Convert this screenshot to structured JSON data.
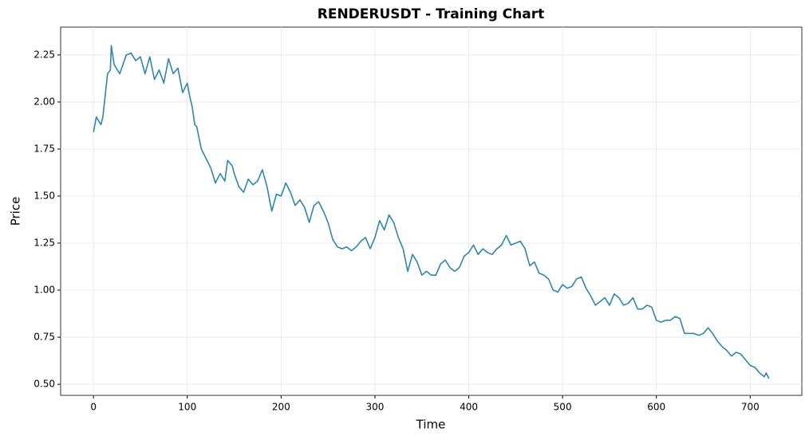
{
  "chart_data": {
    "type": "line",
    "title": "RENDERUSDT - Training Chart",
    "x_label": "Time",
    "y_label": "Price",
    "x": [
      0,
      3,
      8,
      10,
      15,
      18,
      19,
      22,
      28,
      35,
      40,
      45,
      50,
      55,
      60,
      65,
      70,
      75,
      80,
      85,
      90,
      95,
      100,
      103,
      105,
      108,
      110,
      115,
      120,
      125,
      130,
      135,
      140,
      143,
      148,
      150,
      155,
      160,
      165,
      170,
      175,
      180,
      185,
      190,
      195,
      200,
      205,
      210,
      215,
      220,
      225,
      230,
      235,
      240,
      245,
      250,
      255,
      260,
      265,
      270,
      275,
      280,
      285,
      290,
      295,
      300,
      305,
      310,
      315,
      320,
      325,
      330,
      335,
      340,
      345,
      350,
      355,
      360,
      365,
      370,
      375,
      380,
      385,
      390,
      395,
      400,
      405,
      410,
      415,
      420,
      425,
      430,
      435,
      440,
      445,
      450,
      455,
      460,
      465,
      470,
      475,
      480,
      485,
      490,
      495,
      500,
      505,
      510,
      515,
      520,
      525,
      530,
      535,
      540,
      545,
      550,
      555,
      560,
      565,
      570,
      575,
      580,
      585,
      590,
      595,
      600,
      605,
      610,
      615,
      620,
      625,
      630,
      635,
      640,
      645,
      650,
      655,
      660,
      665,
      670,
      675,
      680,
      685,
      690,
      695,
      700,
      705,
      710,
      715,
      717,
      720
    ],
    "series": [
      {
        "name": "Price",
        "color": "#2e86ab",
        "values": [
          1.84,
          1.92,
          1.88,
          1.92,
          2.15,
          2.17,
          2.3,
          2.2,
          2.15,
          2.25,
          2.26,
          2.22,
          2.24,
          2.15,
          2.24,
          2.12,
          2.17,
          2.1,
          2.23,
          2.15,
          2.18,
          2.05,
          2.1,
          2.02,
          1.98,
          1.88,
          1.87,
          1.75,
          1.7,
          1.65,
          1.57,
          1.62,
          1.58,
          1.69,
          1.66,
          1.62,
          1.55,
          1.52,
          1.59,
          1.56,
          1.58,
          1.64,
          1.55,
          1.42,
          1.51,
          1.5,
          1.57,
          1.52,
          1.45,
          1.48,
          1.44,
          1.36,
          1.45,
          1.47,
          1.42,
          1.36,
          1.27,
          1.23,
          1.22,
          1.23,
          1.21,
          1.23,
          1.26,
          1.28,
          1.22,
          1.28,
          1.37,
          1.32,
          1.4,
          1.36,
          1.28,
          1.22,
          1.1,
          1.19,
          1.15,
          1.08,
          1.1,
          1.08,
          1.08,
          1.14,
          1.16,
          1.12,
          1.1,
          1.12,
          1.18,
          1.2,
          1.24,
          1.19,
          1.22,
          1.2,
          1.19,
          1.22,
          1.24,
          1.29,
          1.24,
          1.25,
          1.26,
          1.22,
          1.13,
          1.15,
          1.09,
          1.08,
          1.06,
          1.0,
          0.99,
          1.03,
          1.01,
          1.02,
          1.06,
          1.07,
          1.01,
          0.97,
          0.92,
          0.94,
          0.96,
          0.92,
          0.98,
          0.96,
          0.92,
          0.93,
          0.96,
          0.9,
          0.9,
          0.92,
          0.91,
          0.84,
          0.83,
          0.84,
          0.84,
          0.86,
          0.85,
          0.77,
          0.77,
          0.77,
          0.76,
          0.77,
          0.8,
          0.77,
          0.73,
          0.7,
          0.68,
          0.65,
          0.67,
          0.66,
          0.63,
          0.6,
          0.59,
          0.56,
          0.54,
          0.56,
          0.53
        ]
      }
    ],
    "xlim": [
      -35,
      755
    ],
    "ylim": [
      0.441,
      2.398
    ],
    "xticks": [
      0,
      100,
      200,
      300,
      400,
      500,
      600,
      700
    ],
    "yticks": [
      {
        "value": 0.5,
        "label": "0.50"
      },
      0.75,
      {
        "value": 1,
        "label": "1.00"
      },
      1.25,
      {
        "value": 1.5,
        "label": "1.50"
      },
      1.75,
      {
        "value": 2,
        "label": "2.00"
      },
      2.25
    ],
    "grid": true
  }
}
